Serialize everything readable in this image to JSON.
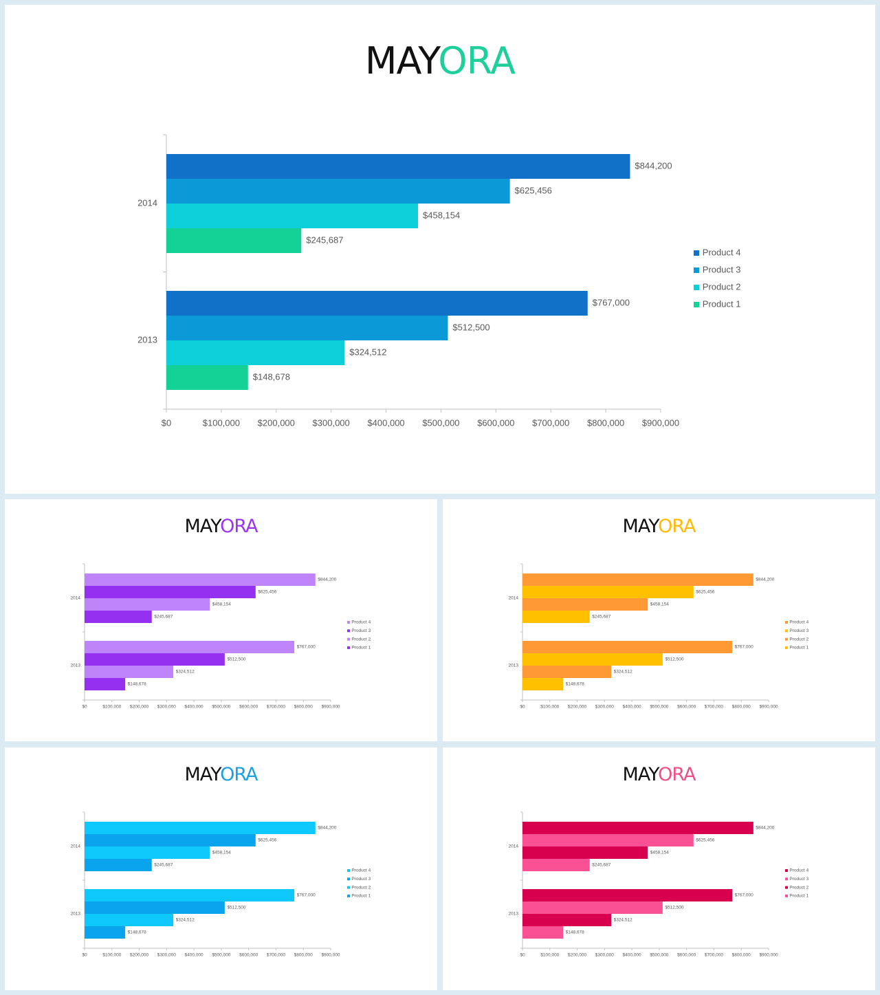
{
  "slides": [
    {
      "id": "main",
      "title_part1": "MAY",
      "title_part2": "ORA",
      "accent_color": "#1ecf9b",
      "chart_data": {
        "type": "bar",
        "orientation": "horizontal",
        "categories": [
          "2014",
          "2013"
        ],
        "series": [
          {
            "name": "Product 4",
            "color": "#1170c7",
            "values": [
              844200,
              767000
            ]
          },
          {
            "name": "Product 3",
            "color": "#0b99d7",
            "values": [
              625456,
              512500
            ]
          },
          {
            "name": "Product 2",
            "color": "#0ccfd9",
            "values": [
              458154,
              324512
            ]
          },
          {
            "name": "Product 1",
            "color": "#14d196",
            "values": [
              245687,
              148678
            ]
          }
        ],
        "data_labels": [
          [
            "$844,200",
            "$625,456",
            "$458,154",
            "$245,687"
          ],
          [
            "$767,000",
            "$512,500",
            "$324,512",
            "$148,678"
          ]
        ],
        "xlim": [
          0,
          900000
        ],
        "xticks": [
          "$0",
          "$100,000",
          "$200,000",
          "$300,000",
          "$400,000",
          "$500,000",
          "$600,000",
          "$700,000",
          "$800,000",
          "$900,000"
        ],
        "legend": [
          "Product 4",
          "Product 3",
          "Product 2",
          "Product 1"
        ],
        "legend_position": "right",
        "grid": false
      }
    },
    {
      "id": "purple",
      "title_part1": "MAY",
      "title_part2": "ORA",
      "accent_color": "#9b35ef",
      "chart_data": {
        "type": "bar",
        "orientation": "horizontal",
        "categories": [
          "2014",
          "2013"
        ],
        "series": [
          {
            "name": "Product 4",
            "color": "#c084fa",
            "values": [
              844200,
              767000
            ]
          },
          {
            "name": "Product 3",
            "color": "#9530f0",
            "values": [
              625456,
              512500
            ]
          },
          {
            "name": "Product 2",
            "color": "#c084fa",
            "values": [
              458154,
              324512
            ]
          },
          {
            "name": "Product 1",
            "color": "#9530f0",
            "values": [
              245687,
              148678
            ]
          }
        ],
        "data_labels": [
          [
            "$844,200",
            "$625,456",
            "$458,154",
            "$245,687"
          ],
          [
            "$767,000",
            "$512,500",
            "$324,512",
            "$148,678"
          ]
        ],
        "xlim": [
          0,
          900000
        ],
        "xticks": [
          "$0",
          "$100,000",
          "$200,000",
          "$300,000",
          "$400,000",
          "$500,000",
          "$600,000",
          "$700,000",
          "$800,000",
          "$900,000"
        ],
        "legend": [
          "Product 4",
          "Product 3",
          "Product 2",
          "Product 1"
        ],
        "legend_position": "right",
        "grid": false
      }
    },
    {
      "id": "orange",
      "title_part1": "MAY",
      "title_part2": "ORA",
      "accent_color": "#ffba08",
      "chart_data": {
        "type": "bar",
        "orientation": "horizontal",
        "categories": [
          "2014",
          "2013"
        ],
        "series": [
          {
            "name": "Product 4",
            "color": "#ff9933",
            "values": [
              844200,
              767000
            ]
          },
          {
            "name": "Product 3",
            "color": "#ffc000",
            "values": [
              625456,
              512500
            ]
          },
          {
            "name": "Product 2",
            "color": "#ff9933",
            "values": [
              458154,
              324512
            ]
          },
          {
            "name": "Product 1",
            "color": "#ffc000",
            "values": [
              245687,
              148678
            ]
          }
        ],
        "data_labels": [
          [
            "$844,200",
            "$625,456",
            "$458,154",
            "$245,687"
          ],
          [
            "$767,000",
            "$512,500",
            "$324,512",
            "$148,678"
          ]
        ],
        "xlim": [
          0,
          900000
        ],
        "xticks": [
          "$0",
          "$100,000",
          "$200,000",
          "$300,000",
          "$400,000",
          "$500,000",
          "$600,000",
          "$700,000",
          "$800,000",
          "$900,000"
        ],
        "legend": [
          "Product 4",
          "Product 3",
          "Product 2",
          "Product 1"
        ],
        "legend_position": "right",
        "grid": false
      }
    },
    {
      "id": "blue",
      "title_part1": "MAY",
      "title_part2": "ORA",
      "accent_color": "#1ba1e2",
      "chart_data": {
        "type": "bar",
        "orientation": "horizontal",
        "categories": [
          "2014",
          "2013"
        ],
        "series": [
          {
            "name": "Product 4",
            "color": "#0ec8fb",
            "values": [
              844200,
              767000
            ]
          },
          {
            "name": "Product 3",
            "color": "#0aa4ee",
            "values": [
              625456,
              512500
            ]
          },
          {
            "name": "Product 2",
            "color": "#0ec8fb",
            "values": [
              458154,
              324512
            ]
          },
          {
            "name": "Product 1",
            "color": "#0aa4ee",
            "values": [
              245687,
              148678
            ]
          }
        ],
        "data_labels": [
          [
            "$844,200",
            "$625,456",
            "$458,154",
            "$245,687"
          ],
          [
            "$767,000",
            "$512,500",
            "$324,512",
            "$148,678"
          ]
        ],
        "xlim": [
          0,
          900000
        ],
        "xticks": [
          "$0",
          "$100,000",
          "$200,000",
          "$300,000",
          "$400,000",
          "$500,000",
          "$600,000",
          "$700,000",
          "$800,000",
          "$900,000"
        ],
        "legend": [
          "Product 4",
          "Product 3",
          "Product 2",
          "Product 1"
        ],
        "legend_position": "right",
        "grid": false
      }
    },
    {
      "id": "pink",
      "title_part1": "MAY",
      "title_part2": "ORA",
      "accent_color": "#ee4f86",
      "chart_data": {
        "type": "bar",
        "orientation": "horizontal",
        "categories": [
          "2014",
          "2013"
        ],
        "series": [
          {
            "name": "Product 4",
            "color": "#d8004e",
            "values": [
              844200,
              767000
            ]
          },
          {
            "name": "Product 3",
            "color": "#fa5195",
            "values": [
              625456,
              512500
            ]
          },
          {
            "name": "Product 2",
            "color": "#d8004e",
            "values": [
              458154,
              324512
            ]
          },
          {
            "name": "Product 1",
            "color": "#fa5195",
            "values": [
              245687,
              148678
            ]
          }
        ],
        "data_labels": [
          [
            "$844,200",
            "$625,456",
            "$458,154",
            "$245,687"
          ],
          [
            "$767,000",
            "$512,500",
            "$324,512",
            "$148,678"
          ]
        ],
        "xlim": [
          0,
          900000
        ],
        "xticks": [
          "$0",
          "$100,000",
          "$200,000",
          "$300,000",
          "$400,000",
          "$500,000",
          "$600,000",
          "$700,000",
          "$800,000",
          "$900,000"
        ],
        "legend": [
          "Product 4",
          "Product 3",
          "Product 2",
          "Product 1"
        ],
        "legend_position": "right",
        "grid": false
      }
    }
  ]
}
